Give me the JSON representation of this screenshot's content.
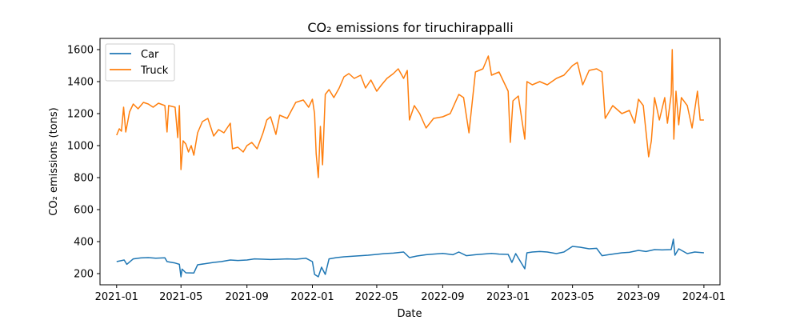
{
  "chart_data": {
    "type": "line",
    "title": "CO₂ emissions for tiruchirappalli",
    "xlabel": "Date",
    "ylabel": "CO₂ emissions (tons)",
    "x_ticks": [
      "2021-01",
      "2021-05",
      "2021-09",
      "2022-01",
      "2022-05",
      "2022-09",
      "2023-01",
      "2023-05",
      "2023-09",
      "2024-01"
    ],
    "y_ticks": [
      200,
      400,
      600,
      800,
      1000,
      1200,
      1400,
      1600
    ],
    "xlim": [
      "2020-12-01",
      "2024-01-31"
    ],
    "ylim": [
      130,
      1670
    ],
    "grid": false,
    "legend_position": "top-left",
    "colors": {
      "Car": "#1f77b4",
      "Truck": "#ff7f0e"
    },
    "series": [
      {
        "name": "Car",
        "points": [
          [
            "2021-01-01",
            275
          ],
          [
            "2021-01-15",
            285
          ],
          [
            "2021-01-20",
            258
          ],
          [
            "2021-02-01",
            292
          ],
          [
            "2021-02-15",
            298
          ],
          [
            "2021-03-01",
            300
          ],
          [
            "2021-03-15",
            296
          ],
          [
            "2021-04-01",
            299
          ],
          [
            "2021-04-05",
            275
          ],
          [
            "2021-04-20",
            266
          ],
          [
            "2021-04-28",
            258
          ],
          [
            "2021-05-01",
            180
          ],
          [
            "2021-05-03",
            228
          ],
          [
            "2021-05-10",
            205
          ],
          [
            "2021-05-25",
            204
          ],
          [
            "2021-06-01",
            255
          ],
          [
            "2021-06-15",
            262
          ],
          [
            "2021-07-01",
            270
          ],
          [
            "2021-07-15",
            275
          ],
          [
            "2021-08-01",
            285
          ],
          [
            "2021-08-15",
            282
          ],
          [
            "2021-09-01",
            285
          ],
          [
            "2021-09-15",
            292
          ],
          [
            "2021-10-01",
            290
          ],
          [
            "2021-10-15",
            288
          ],
          [
            "2021-11-01",
            290
          ],
          [
            "2021-11-15",
            292
          ],
          [
            "2021-12-01",
            290
          ],
          [
            "2021-12-20",
            296
          ],
          [
            "2022-01-01",
            275
          ],
          [
            "2022-01-05",
            195
          ],
          [
            "2022-01-12",
            180
          ],
          [
            "2022-01-18",
            240
          ],
          [
            "2022-01-25",
            195
          ],
          [
            "2022-02-01",
            292
          ],
          [
            "2022-02-15",
            300
          ],
          [
            "2022-03-01",
            305
          ],
          [
            "2022-03-15",
            308
          ],
          [
            "2022-04-01",
            312
          ],
          [
            "2022-04-15",
            315
          ],
          [
            "2022-05-01",
            320
          ],
          [
            "2022-05-15",
            325
          ],
          [
            "2022-06-01",
            328
          ],
          [
            "2022-06-20",
            335
          ],
          [
            "2022-07-01",
            300
          ],
          [
            "2022-07-15",
            310
          ],
          [
            "2022-08-01",
            318
          ],
          [
            "2022-08-15",
            322
          ],
          [
            "2022-09-01",
            326
          ],
          [
            "2022-09-20",
            318
          ],
          [
            "2022-10-01",
            335
          ],
          [
            "2022-10-15",
            312
          ],
          [
            "2022-11-01",
            318
          ],
          [
            "2022-11-15",
            322
          ],
          [
            "2022-12-01",
            326
          ],
          [
            "2022-12-15",
            322
          ],
          [
            "2023-01-01",
            320
          ],
          [
            "2023-01-08",
            270
          ],
          [
            "2023-01-15",
            325
          ],
          [
            "2023-02-01",
            230
          ],
          [
            "2023-02-05",
            330
          ],
          [
            "2023-02-15",
            335
          ],
          [
            "2023-03-01",
            338
          ],
          [
            "2023-03-15",
            335
          ],
          [
            "2023-04-01",
            325
          ],
          [
            "2023-04-15",
            335
          ],
          [
            "2023-05-01",
            370
          ],
          [
            "2023-05-15",
            365
          ],
          [
            "2023-06-01",
            355
          ],
          [
            "2023-06-15",
            358
          ],
          [
            "2023-06-25",
            312
          ],
          [
            "2023-07-15",
            322
          ],
          [
            "2023-08-01",
            330
          ],
          [
            "2023-08-15",
            333
          ],
          [
            "2023-09-01",
            345
          ],
          [
            "2023-09-15",
            338
          ],
          [
            "2023-10-01",
            350
          ],
          [
            "2023-10-15",
            348
          ],
          [
            "2023-11-01",
            350
          ],
          [
            "2023-11-05",
            415
          ],
          [
            "2023-11-08",
            315
          ],
          [
            "2023-11-15",
            355
          ],
          [
            "2023-12-01",
            325
          ],
          [
            "2023-12-15",
            335
          ],
          [
            "2024-01-01",
            330
          ]
        ]
      },
      {
        "name": "Truck",
        "points": [
          [
            "2021-01-01",
            1065
          ],
          [
            "2021-01-06",
            1105
          ],
          [
            "2021-01-10",
            1090
          ],
          [
            "2021-01-14",
            1240
          ],
          [
            "2021-01-18",
            1085
          ],
          [
            "2021-01-25",
            1210
          ],
          [
            "2021-02-01",
            1260
          ],
          [
            "2021-02-10",
            1230
          ],
          [
            "2021-02-20",
            1270
          ],
          [
            "2021-03-01",
            1260
          ],
          [
            "2021-03-10",
            1240
          ],
          [
            "2021-03-20",
            1265
          ],
          [
            "2021-04-01",
            1250
          ],
          [
            "2021-04-05",
            1085
          ],
          [
            "2021-04-08",
            1250
          ],
          [
            "2021-04-20",
            1240
          ],
          [
            "2021-04-25",
            1050
          ],
          [
            "2021-04-28",
            1250
          ],
          [
            "2021-05-01",
            850
          ],
          [
            "2021-05-05",
            1030
          ],
          [
            "2021-05-10",
            1010
          ],
          [
            "2021-05-15",
            960
          ],
          [
            "2021-05-20",
            1000
          ],
          [
            "2021-05-25",
            940
          ],
          [
            "2021-06-01",
            1080
          ],
          [
            "2021-06-10",
            1150
          ],
          [
            "2021-06-20",
            1170
          ],
          [
            "2021-07-01",
            1060
          ],
          [
            "2021-07-10",
            1100
          ],
          [
            "2021-07-20",
            1080
          ],
          [
            "2021-08-01",
            1140
          ],
          [
            "2021-08-05",
            980
          ],
          [
            "2021-08-15",
            990
          ],
          [
            "2021-08-25",
            960
          ],
          [
            "2021-09-01",
            1000
          ],
          [
            "2021-09-10",
            1020
          ],
          [
            "2021-09-20",
            980
          ],
          [
            "2021-10-01",
            1080
          ],
          [
            "2021-10-08",
            1160
          ],
          [
            "2021-10-15",
            1180
          ],
          [
            "2021-10-25",
            1070
          ],
          [
            "2021-11-01",
            1190
          ],
          [
            "2021-11-15",
            1170
          ],
          [
            "2021-12-01",
            1270
          ],
          [
            "2021-12-15",
            1285
          ],
          [
            "2021-12-25",
            1240
          ],
          [
            "2022-01-01",
            1290
          ],
          [
            "2022-01-05",
            1200
          ],
          [
            "2022-01-08",
            950
          ],
          [
            "2022-01-12",
            800
          ],
          [
            "2022-01-16",
            1120
          ],
          [
            "2022-01-20",
            880
          ],
          [
            "2022-01-25",
            1320
          ],
          [
            "2022-02-01",
            1350
          ],
          [
            "2022-02-10",
            1300
          ],
          [
            "2022-02-20",
            1360
          ],
          [
            "2022-03-01",
            1430
          ],
          [
            "2022-03-10",
            1450
          ],
          [
            "2022-03-20",
            1420
          ],
          [
            "2022-04-01",
            1440
          ],
          [
            "2022-04-10",
            1360
          ],
          [
            "2022-04-20",
            1410
          ],
          [
            "2022-05-01",
            1340
          ],
          [
            "2022-05-10",
            1380
          ],
          [
            "2022-05-20",
            1420
          ],
          [
            "2022-06-01",
            1450
          ],
          [
            "2022-06-10",
            1480
          ],
          [
            "2022-06-20",
            1420
          ],
          [
            "2022-06-27",
            1470
          ],
          [
            "2022-07-01",
            1160
          ],
          [
            "2022-07-10",
            1250
          ],
          [
            "2022-07-20",
            1200
          ],
          [
            "2022-08-01",
            1110
          ],
          [
            "2022-08-15",
            1170
          ],
          [
            "2022-09-01",
            1180
          ],
          [
            "2022-09-15",
            1200
          ],
          [
            "2022-10-01",
            1320
          ],
          [
            "2022-10-10",
            1300
          ],
          [
            "2022-10-20",
            1080
          ],
          [
            "2022-11-01",
            1460
          ],
          [
            "2022-11-15",
            1480
          ],
          [
            "2022-11-25",
            1560
          ],
          [
            "2022-12-01",
            1440
          ],
          [
            "2022-12-15",
            1460
          ],
          [
            "2023-01-01",
            1340
          ],
          [
            "2023-01-05",
            1020
          ],
          [
            "2023-01-10",
            1280
          ],
          [
            "2023-01-20",
            1310
          ],
          [
            "2023-02-01",
            1040
          ],
          [
            "2023-02-05",
            1400
          ],
          [
            "2023-02-15",
            1380
          ],
          [
            "2023-03-01",
            1400
          ],
          [
            "2023-03-15",
            1380
          ],
          [
            "2023-04-01",
            1420
          ],
          [
            "2023-04-15",
            1440
          ],
          [
            "2023-05-01",
            1500
          ],
          [
            "2023-05-10",
            1520
          ],
          [
            "2023-05-20",
            1380
          ],
          [
            "2023-06-01",
            1470
          ],
          [
            "2023-06-15",
            1480
          ],
          [
            "2023-06-25",
            1460
          ],
          [
            "2023-07-01",
            1170
          ],
          [
            "2023-07-15",
            1250
          ],
          [
            "2023-08-01",
            1200
          ],
          [
            "2023-08-15",
            1220
          ],
          [
            "2023-08-25",
            1140
          ],
          [
            "2023-09-01",
            1290
          ],
          [
            "2023-09-10",
            1250
          ],
          [
            "2023-09-20",
            930
          ],
          [
            "2023-09-25",
            1030
          ],
          [
            "2023-10-01",
            1300
          ],
          [
            "2023-10-10",
            1160
          ],
          [
            "2023-10-20",
            1300
          ],
          [
            "2023-10-25",
            1140
          ],
          [
            "2023-11-01",
            1320
          ],
          [
            "2023-11-03",
            1600
          ],
          [
            "2023-11-06",
            1040
          ],
          [
            "2023-11-10",
            1340
          ],
          [
            "2023-11-15",
            1130
          ],
          [
            "2023-11-20",
            1300
          ],
          [
            "2023-12-01",
            1250
          ],
          [
            "2023-12-10",
            1110
          ],
          [
            "2023-12-20",
            1340
          ],
          [
            "2023-12-25",
            1160
          ],
          [
            "2024-01-01",
            1160
          ]
        ]
      }
    ]
  }
}
